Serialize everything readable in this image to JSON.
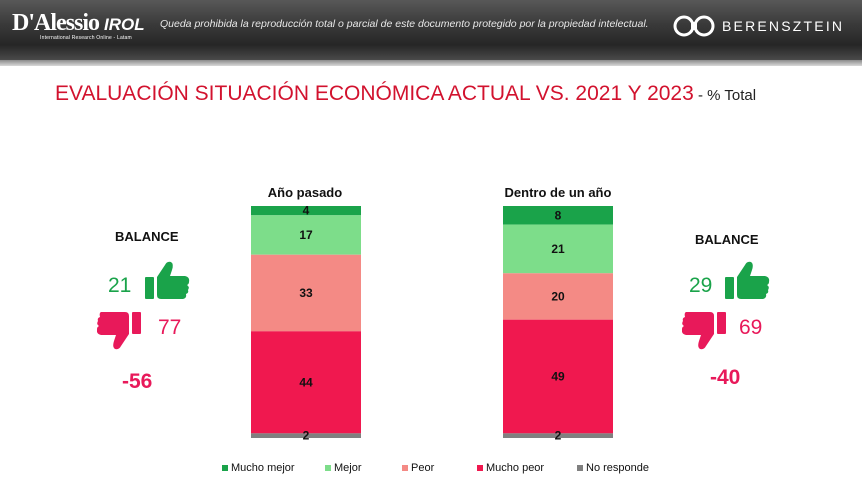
{
  "header": {
    "logo_main": "D'Alessio",
    "logo_accent": "IROL",
    "logo_sub": "International Research Online - Latam",
    "disclaimer": "Queda prohibida la reproducción total o parcial de este documento protegido por la propiedad intelectual.",
    "logo_right": "BERENSZTEIN"
  },
  "title": {
    "main": "EVALUACIÓN SITUACIÓN ECONÓMICA ACTUAL VS. 2021 Y 2023",
    "suffix": " - % Total"
  },
  "balance_left": {
    "label": "BALANCE",
    "positive": "21",
    "negative": "77",
    "balance": "-56"
  },
  "balance_right": {
    "label": "BALANCE",
    "positive": "29",
    "negative": "69",
    "balance": "-40"
  },
  "colors": {
    "mucho_mejor": "#1aa34a",
    "mejor": "#7ddd8a",
    "peor": "#f48a85",
    "mucho_peor": "#f0184f",
    "no_responde": "#808080",
    "thumb_up": "#1aa34a",
    "thumb_down": "#e8195a"
  },
  "chart_data": {
    "type": "bar",
    "stacked": true,
    "categories": [
      "Año pasado",
      "Dentro de un año"
    ],
    "series": [
      {
        "name": "Mucho mejor",
        "values": [
          4,
          8
        ]
      },
      {
        "name": "Mejor",
        "values": [
          17,
          21
        ]
      },
      {
        "name": "Peor",
        "values": [
          33,
          20
        ]
      },
      {
        "name": "Mucho peor",
        "values": [
          44,
          49
        ]
      },
      {
        "name": "No responde",
        "values": [
          2,
          2
        ]
      }
    ],
    "ylim": [
      0,
      100
    ],
    "legend_position": "bottom",
    "grid": false
  }
}
